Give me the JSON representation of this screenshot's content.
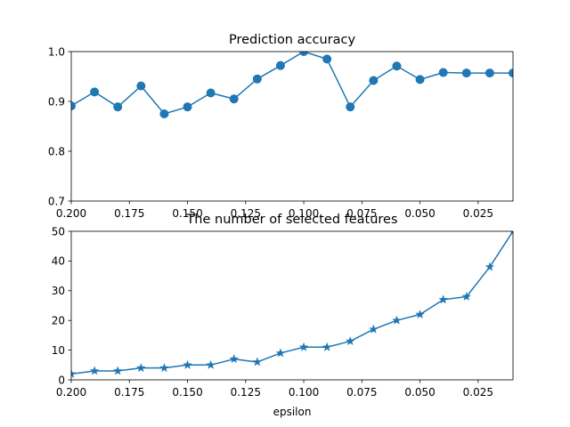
{
  "chart_data": [
    {
      "type": "line",
      "title": "Prediction accuracy",
      "xlabel": "",
      "ylabel": "",
      "x_inverted": true,
      "xlim": [
        0.2,
        0.01
      ],
      "ylim": [
        0.7,
        1.0
      ],
      "xticks": [
        0.2,
        0.175,
        0.15,
        0.125,
        0.1,
        0.075,
        0.05,
        0.025
      ],
      "xtick_labels": [
        "0.200",
        "0.175",
        "0.150",
        "0.125",
        "0.100",
        "0.075",
        "0.050",
        "0.025"
      ],
      "yticks": [
        0.7,
        0.8,
        0.9,
        1.0
      ],
      "ytick_labels": [
        "0.7",
        "0.8",
        "0.9",
        "1.0"
      ],
      "marker": "circle",
      "color": "#1f77b4",
      "x": [
        0.2,
        0.19,
        0.18,
        0.17,
        0.16,
        0.15,
        0.14,
        0.13,
        0.12,
        0.11,
        0.1,
        0.09,
        0.08,
        0.07,
        0.06,
        0.05,
        0.04,
        0.03,
        0.02,
        0.01
      ],
      "values": [
        0.891,
        0.919,
        0.889,
        0.931,
        0.875,
        0.889,
        0.917,
        0.905,
        0.945,
        0.972,
        1.0,
        0.985,
        0.889,
        0.942,
        0.971,
        0.944,
        0.958,
        0.957,
        0.957,
        0.957
      ]
    },
    {
      "type": "line",
      "title": "The number of selected features",
      "xlabel": "epsilon",
      "ylabel": "",
      "x_inverted": true,
      "xlim": [
        0.2,
        0.01
      ],
      "ylim": [
        0,
        50
      ],
      "xticks": [
        0.2,
        0.175,
        0.15,
        0.125,
        0.1,
        0.075,
        0.05,
        0.025
      ],
      "xtick_labels": [
        "0.200",
        "0.175",
        "0.150",
        "0.125",
        "0.100",
        "0.075",
        "0.050",
        "0.025"
      ],
      "yticks": [
        0,
        10,
        20,
        30,
        40,
        50
      ],
      "ytick_labels": [
        "0",
        "10",
        "20",
        "30",
        "40",
        "50"
      ],
      "marker": "star",
      "color": "#1f77b4",
      "x": [
        0.2,
        0.19,
        0.18,
        0.17,
        0.16,
        0.15,
        0.14,
        0.13,
        0.12,
        0.11,
        0.1,
        0.09,
        0.08,
        0.07,
        0.06,
        0.05,
        0.04,
        0.03,
        0.02,
        0.01
      ],
      "values": [
        2,
        3,
        3,
        4,
        4,
        5,
        5,
        7,
        6,
        9,
        11,
        11,
        13,
        17,
        20,
        22,
        27,
        28,
        38,
        50
      ]
    }
  ]
}
